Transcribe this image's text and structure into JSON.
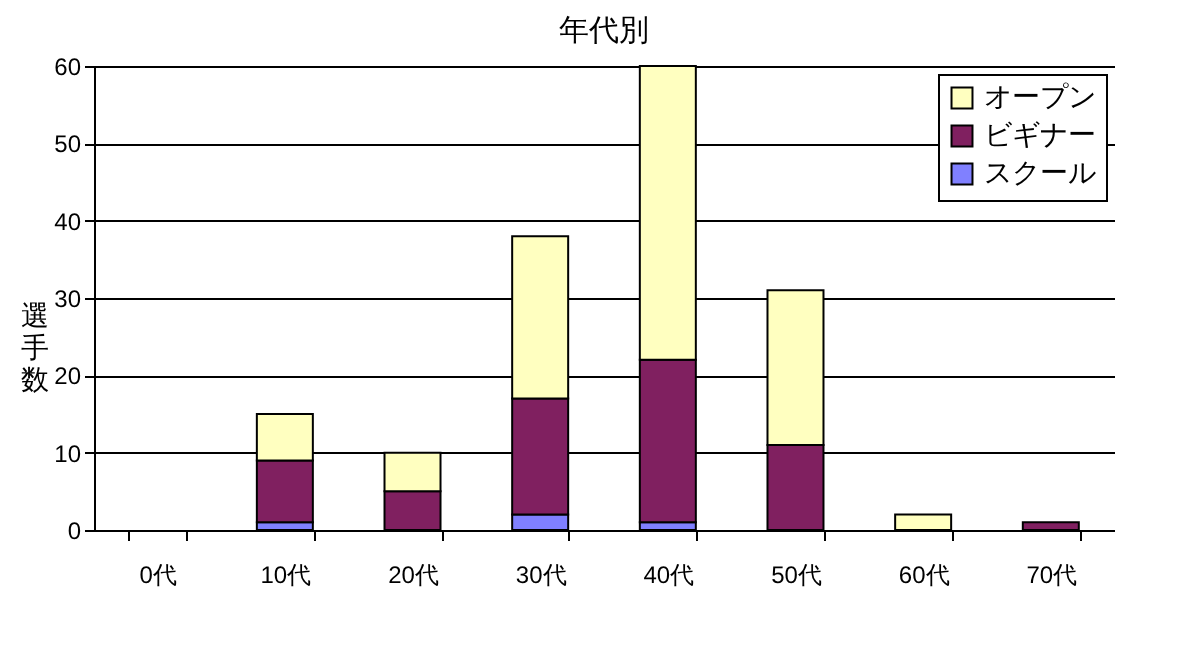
{
  "chart_data": {
    "type": "bar",
    "title": "年代別",
    "ylabel": "選手数",
    "stacked": true,
    "categories": [
      "0代",
      "10代",
      "20代",
      "30代",
      "40代",
      "50代",
      "60代",
      "70代"
    ],
    "series": [
      {
        "name": "スクール",
        "color": "#8080ff",
        "values": [
          0,
          1,
          0,
          2,
          1,
          0,
          0,
          0
        ]
      },
      {
        "name": "ビギナー",
        "color": "#802060",
        "values": [
          0,
          8,
          5,
          15,
          21,
          11,
          0,
          1
        ]
      },
      {
        "name": "オープン",
        "color": "#ffffc0",
        "values": [
          0,
          6,
          5,
          21,
          38,
          20,
          2,
          0
        ]
      }
    ],
    "ylim": [
      0,
      60
    ],
    "yticks": [
      0,
      10,
      20,
      30,
      40,
      50,
      60
    ],
    "grid": "y",
    "legend": "top right"
  }
}
